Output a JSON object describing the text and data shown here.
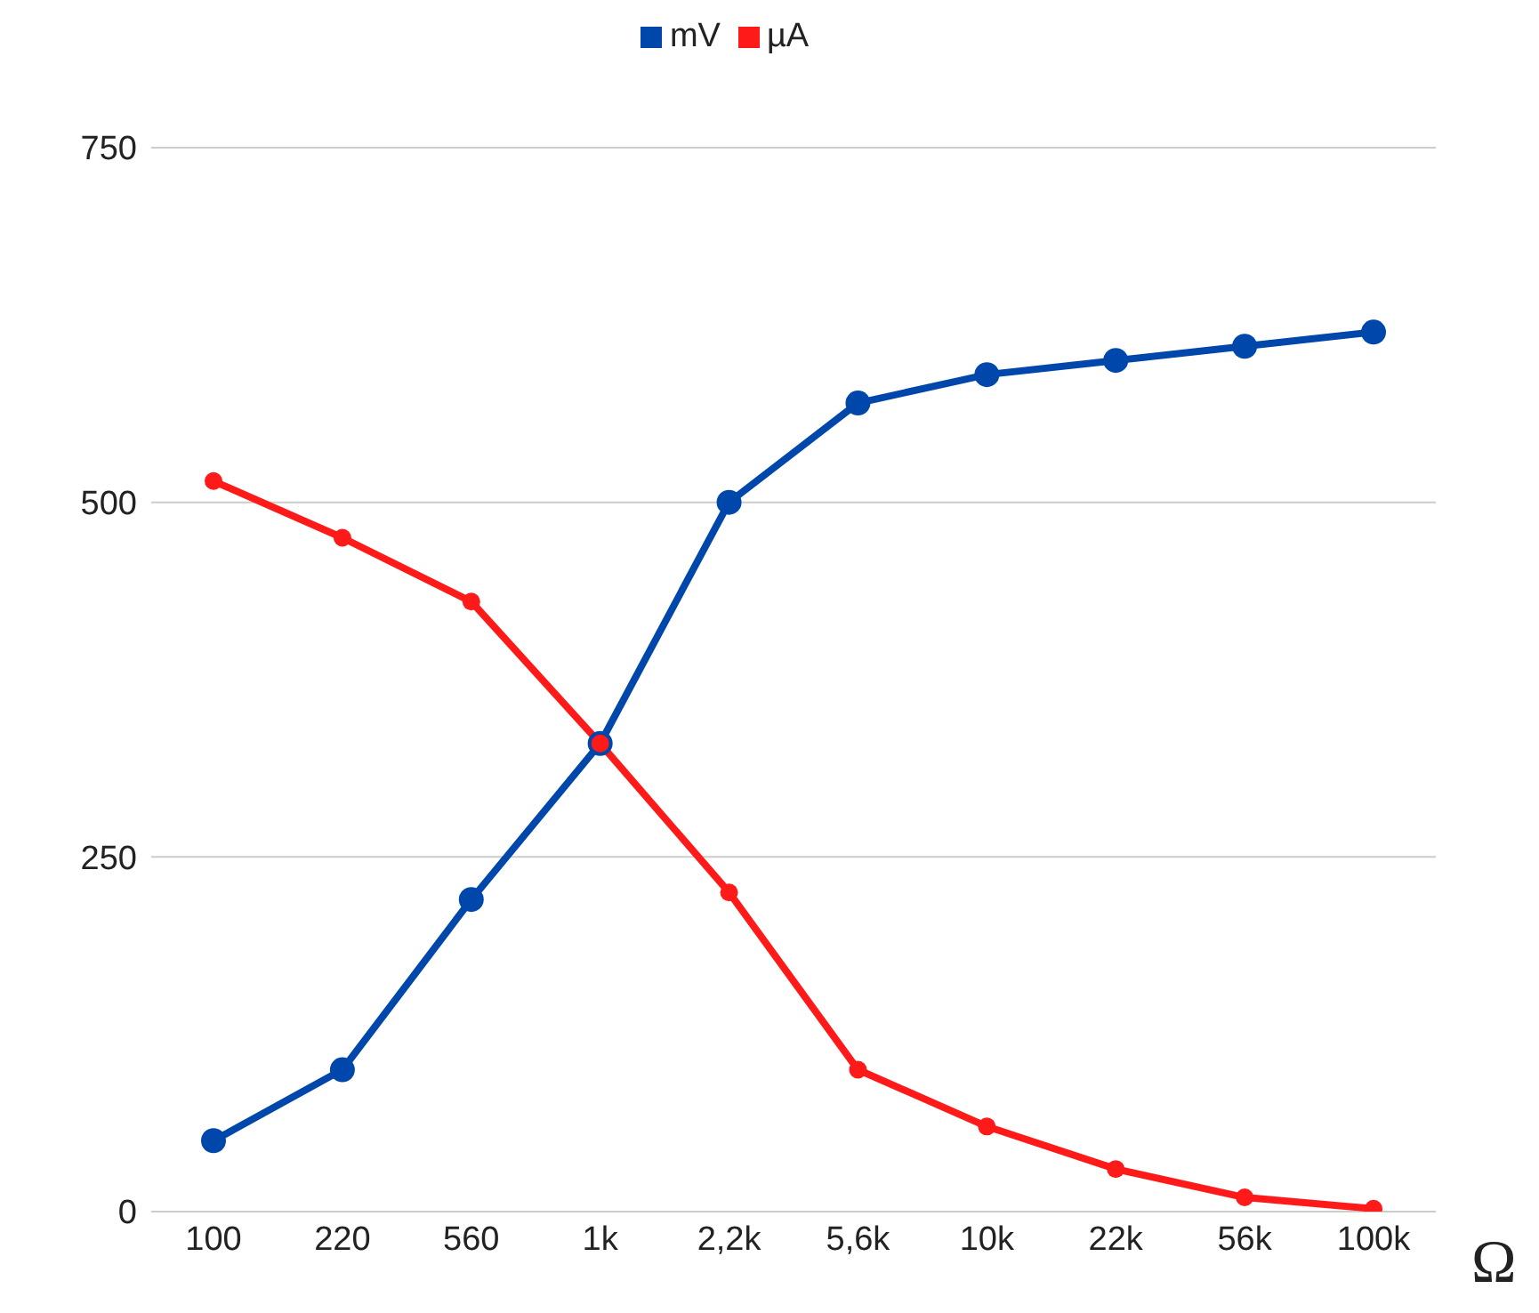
{
  "chart_data": {
    "type": "line",
    "xlabel": "Ω",
    "categories": [
      "100",
      "220",
      "560",
      "1k",
      "2,2k",
      "5,6k",
      "10k",
      "22k",
      "56k",
      "100k"
    ],
    "series": [
      {
        "name": "mV",
        "color": "#0047ab",
        "values": [
          50,
          100,
          220,
          330,
          500,
          570,
          590,
          600,
          610,
          620
        ]
      },
      {
        "name": "µA",
        "color": "#ff1a1a",
        "values": [
          515,
          475,
          430,
          330,
          225,
          100,
          60,
          30,
          10,
          2
        ]
      }
    ],
    "ylim": [
      0,
      750
    ],
    "yticks": [
      0,
      250,
      500,
      750
    ],
    "grid": "y",
    "legend": "top",
    "marker": "circle",
    "line_style": "solid"
  }
}
